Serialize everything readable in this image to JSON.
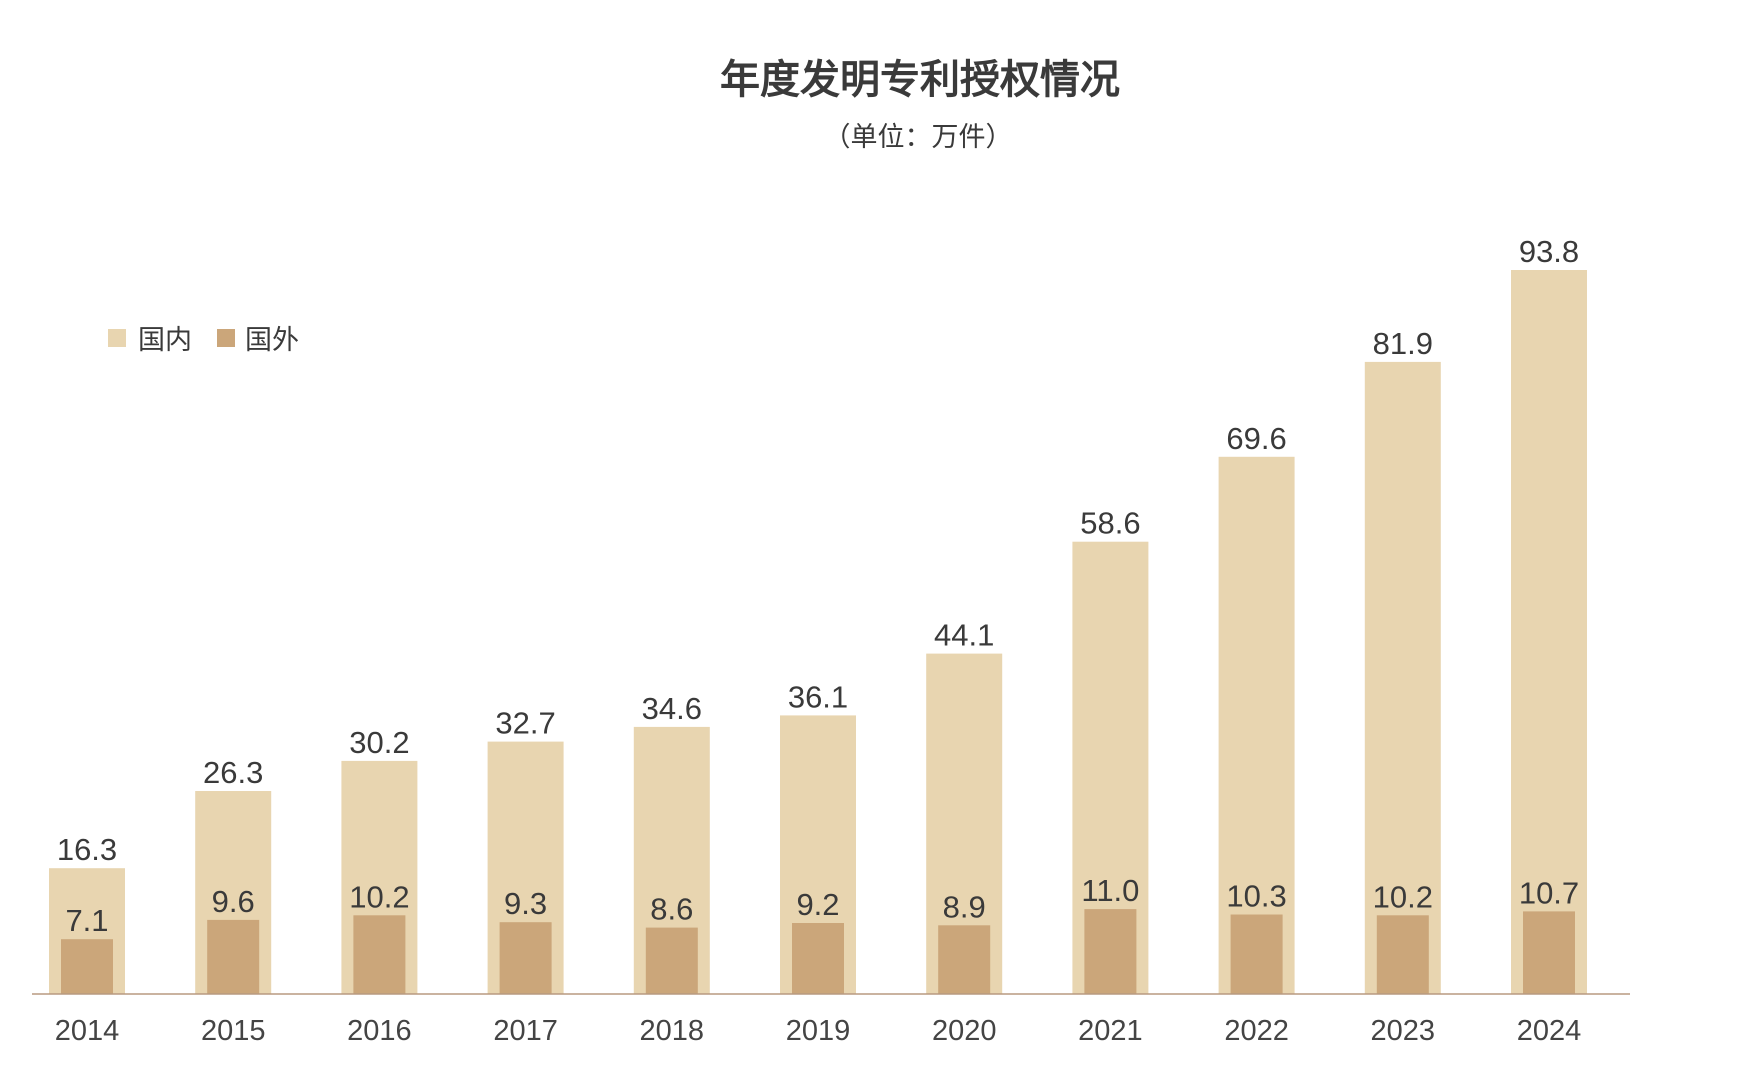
{
  "chart_data": {
    "type": "bar",
    "title": "年度发明专利授权情况",
    "subtitle": "（单位：万件）",
    "categories": [
      "2014",
      "2015",
      "2016",
      "2017",
      "2018",
      "2019",
      "2020",
      "2021",
      "2022",
      "2023",
      "2024"
    ],
    "series": [
      {
        "name": "国内",
        "color": "#e8d5b0",
        "values": [
          16.3,
          26.3,
          30.2,
          32.7,
          34.6,
          36.1,
          44.1,
          58.6,
          69.6,
          81.9,
          93.8
        ]
      },
      {
        "name": "国外",
        "color": "#cba67a",
        "values": [
          7.1,
          9.6,
          10.2,
          9.3,
          8.6,
          9.2,
          8.9,
          11.0,
          10.3,
          10.2,
          10.7
        ]
      }
    ],
    "value_labels": [
      [
        "16.3",
        "26.3",
        "30.2",
        "32.7",
        "34.6",
        "36.1",
        "44.1",
        "58.6",
        "69.6",
        "81.9",
        "93.8"
      ],
      [
        "7.1",
        "9.6",
        "10.2",
        "9.3",
        "8.6",
        "9.2",
        "8.9",
        "11.0",
        "10.3",
        "10.2",
        "10.7"
      ]
    ],
    "legend_position": "top-left",
    "grid": false,
    "ylim": [
      0,
      100
    ],
    "axis_color": "#b89a80"
  }
}
